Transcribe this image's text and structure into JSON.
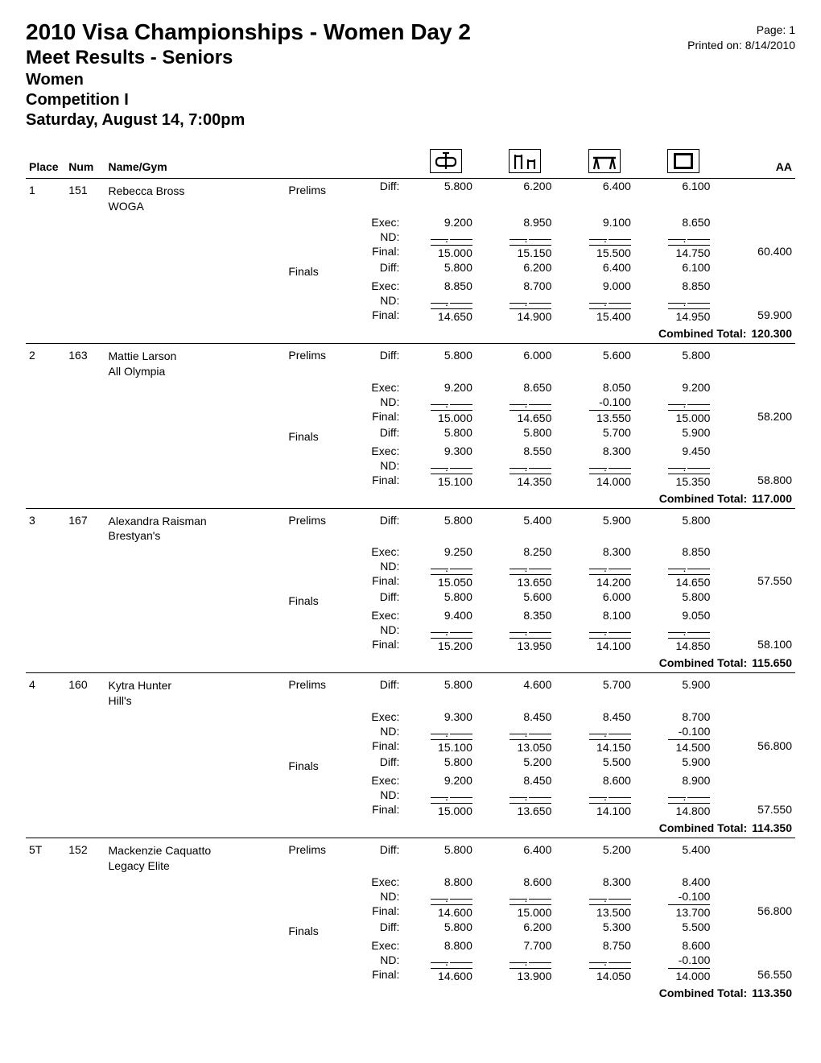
{
  "header": {
    "title": "2010 Visa Championships - Women Day 2",
    "subtitle": "Meet Results - Seniors",
    "division": "Women",
    "competition": "Competition I",
    "session": "Saturday, August 14, 7:00pm",
    "page_label": "Page: 1",
    "printed_label": "Printed on: 8/14/2010"
  },
  "columns": {
    "place": "Place",
    "num": "Num",
    "name": "Name/Gym",
    "aa": "AA"
  },
  "icons": {
    "vault": "vault-icon",
    "ubars": "uneven-bars-icon",
    "beam": "balance-beam-icon",
    "floor": "floor-icon"
  },
  "row_labels": {
    "diff": "Diff:",
    "exec": "Exec:",
    "nd": "ND:",
    "final": "Final:"
  },
  "stage_labels": {
    "prelims": "Prelims",
    "finals": "Finals"
  },
  "combined_label": "Combined Total:",
  "gymnasts": [
    {
      "place": "1",
      "num": "151",
      "name": "Rebecca Bross",
      "gym": "WOGA",
      "stages": [
        {
          "stage": "prelims",
          "diff": {
            "v": "5.800",
            "ub": "6.200",
            "bb": "6.400",
            "fx": "6.100"
          },
          "exec": {
            "v": "9.200",
            "ub": "8.950",
            "bb": "9.100",
            "fx": "8.650"
          },
          "nd": {
            "v": "",
            "ub": "",
            "bb": "",
            "fx": ""
          },
          "final": {
            "v": "15.000",
            "ub": "15.150",
            "bb": "15.500",
            "fx": "14.750"
          },
          "aa": "60.400"
        },
        {
          "stage": "finals",
          "diff": {
            "v": "5.800",
            "ub": "6.200",
            "bb": "6.400",
            "fx": "6.100"
          },
          "exec": {
            "v": "8.850",
            "ub": "8.700",
            "bb": "9.000",
            "fx": "8.850"
          },
          "nd": {
            "v": "",
            "ub": "",
            "bb": "",
            "fx": ""
          },
          "final": {
            "v": "14.650",
            "ub": "14.900",
            "bb": "15.400",
            "fx": "14.950"
          },
          "aa": "59.900"
        }
      ],
      "combined": "120.300"
    },
    {
      "place": "2",
      "num": "163",
      "name": "Mattie Larson",
      "gym": "All Olympia",
      "stages": [
        {
          "stage": "prelims",
          "diff": {
            "v": "5.800",
            "ub": "6.000",
            "bb": "5.600",
            "fx": "5.800"
          },
          "exec": {
            "v": "9.200",
            "ub": "8.650",
            "bb": "8.050",
            "fx": "9.200"
          },
          "nd": {
            "v": "",
            "ub": "",
            "bb": "-0.100",
            "fx": ""
          },
          "final": {
            "v": "15.000",
            "ub": "14.650",
            "bb": "13.550",
            "fx": "15.000"
          },
          "aa": "58.200"
        },
        {
          "stage": "finals",
          "diff": {
            "v": "5.800",
            "ub": "5.800",
            "bb": "5.700",
            "fx": "5.900"
          },
          "exec": {
            "v": "9.300",
            "ub": "8.550",
            "bb": "8.300",
            "fx": "9.450"
          },
          "nd": {
            "v": "",
            "ub": "",
            "bb": "",
            "fx": ""
          },
          "final": {
            "v": "15.100",
            "ub": "14.350",
            "bb": "14.000",
            "fx": "15.350"
          },
          "aa": "58.800"
        }
      ],
      "combined": "117.000"
    },
    {
      "place": "3",
      "num": "167",
      "name": "Alexandra Raisman",
      "gym": "Brestyan's",
      "stages": [
        {
          "stage": "prelims",
          "diff": {
            "v": "5.800",
            "ub": "5.400",
            "bb": "5.900",
            "fx": "5.800"
          },
          "exec": {
            "v": "9.250",
            "ub": "8.250",
            "bb": "8.300",
            "fx": "8.850"
          },
          "nd": {
            "v": "",
            "ub": "",
            "bb": "",
            "fx": ""
          },
          "final": {
            "v": "15.050",
            "ub": "13.650",
            "bb": "14.200",
            "fx": "14.650"
          },
          "aa": "57.550"
        },
        {
          "stage": "finals",
          "diff": {
            "v": "5.800",
            "ub": "5.600",
            "bb": "6.000",
            "fx": "5.800"
          },
          "exec": {
            "v": "9.400",
            "ub": "8.350",
            "bb": "8.100",
            "fx": "9.050"
          },
          "nd": {
            "v": "",
            "ub": "",
            "bb": "",
            "fx": ""
          },
          "final": {
            "v": "15.200",
            "ub": "13.950",
            "bb": "14.100",
            "fx": "14.850"
          },
          "aa": "58.100"
        }
      ],
      "combined": "115.650"
    },
    {
      "place": "4",
      "num": "160",
      "name": "Kytra Hunter",
      "gym": "Hill's",
      "stages": [
        {
          "stage": "prelims",
          "diff": {
            "v": "5.800",
            "ub": "4.600",
            "bb": "5.700",
            "fx": "5.900"
          },
          "exec": {
            "v": "9.300",
            "ub": "8.450",
            "bb": "8.450",
            "fx": "8.700"
          },
          "nd": {
            "v": "",
            "ub": "",
            "bb": "",
            "fx": "-0.100"
          },
          "final": {
            "v": "15.100",
            "ub": "13.050",
            "bb": "14.150",
            "fx": "14.500"
          },
          "aa": "56.800"
        },
        {
          "stage": "finals",
          "diff": {
            "v": "5.800",
            "ub": "5.200",
            "bb": "5.500",
            "fx": "5.900"
          },
          "exec": {
            "v": "9.200",
            "ub": "8.450",
            "bb": "8.600",
            "fx": "8.900"
          },
          "nd": {
            "v": "",
            "ub": "",
            "bb": "",
            "fx": ""
          },
          "final": {
            "v": "15.000",
            "ub": "13.650",
            "bb": "14.100",
            "fx": "14.800"
          },
          "aa": "57.550"
        }
      ],
      "combined": "114.350"
    },
    {
      "place": "5T",
      "num": "152",
      "name": "Mackenzie Caquatto",
      "gym": "Legacy Elite",
      "stages": [
        {
          "stage": "prelims",
          "diff": {
            "v": "5.800",
            "ub": "6.400",
            "bb": "5.200",
            "fx": "5.400"
          },
          "exec": {
            "v": "8.800",
            "ub": "8.600",
            "bb": "8.300",
            "fx": "8.400"
          },
          "nd": {
            "v": "",
            "ub": "",
            "bb": "",
            "fx": "-0.100"
          },
          "final": {
            "v": "14.600",
            "ub": "15.000",
            "bb": "13.500",
            "fx": "13.700"
          },
          "aa": "56.800"
        },
        {
          "stage": "finals",
          "diff": {
            "v": "5.800",
            "ub": "6.200",
            "bb": "5.300",
            "fx": "5.500"
          },
          "exec": {
            "v": "8.800",
            "ub": "7.700",
            "bb": "8.750",
            "fx": "8.600"
          },
          "nd": {
            "v": "",
            "ub": "",
            "bb": "",
            "fx": "-0.100"
          },
          "final": {
            "v": "14.600",
            "ub": "13.900",
            "bb": "14.050",
            "fx": "14.000"
          },
          "aa": "56.550"
        }
      ],
      "combined": "113.350"
    }
  ]
}
